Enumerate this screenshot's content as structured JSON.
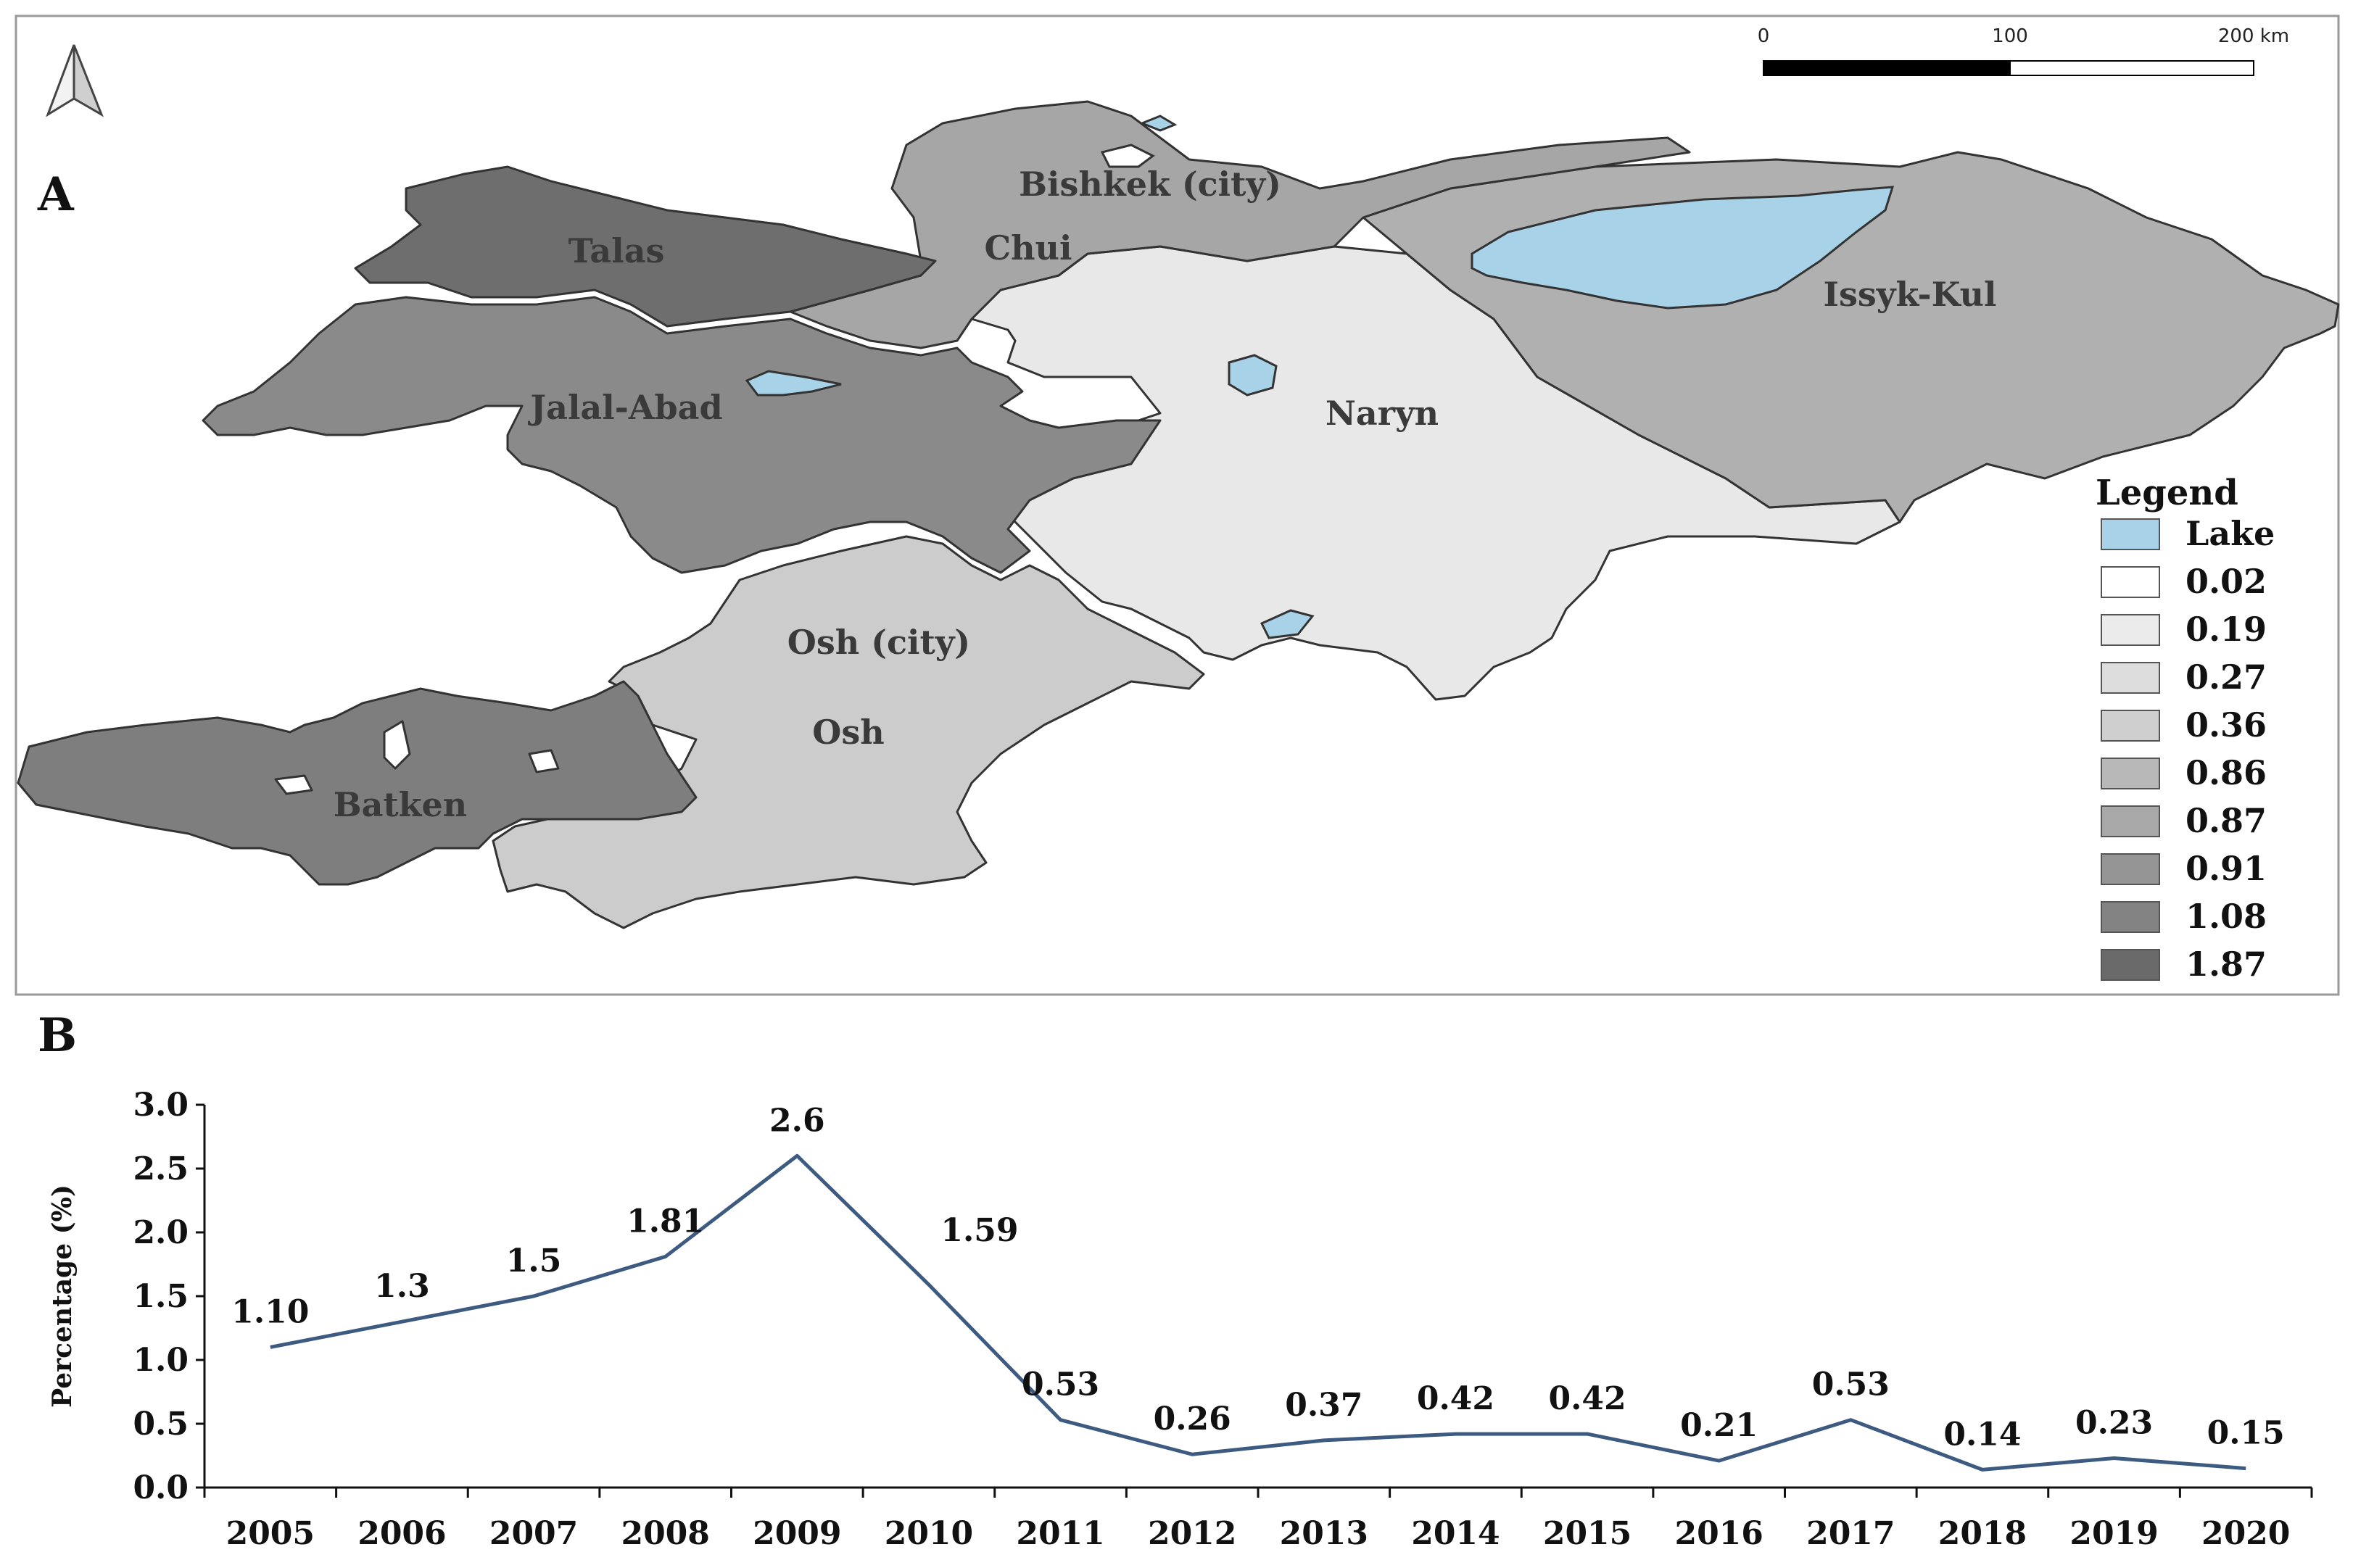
{
  "panel_a": {
    "label": "A",
    "north_arrow": "north-arrow-icon",
    "scale_bar": {
      "ticks": [
        "0",
        "100",
        "200 km"
      ]
    },
    "regions": [
      {
        "name": "Talas",
        "value": "1.87",
        "color": "#6e6e6e"
      },
      {
        "name": "Chui",
        "value": "0.87",
        "color": "#a6a6a6"
      },
      {
        "name": "Issyk-Kul",
        "value": "0.86",
        "color": "#b0b0b0"
      },
      {
        "name": "Jalal-Abad",
        "value": "1.08",
        "color": "#8a8a8a"
      },
      {
        "name": "Naryn",
        "value": "0.19",
        "color": "#e8e8e8"
      },
      {
        "name": "Osh",
        "value": "0.36",
        "color": "#cccccc"
      },
      {
        "name": "Batken",
        "value": "0.91",
        "color": "#7e7e7e"
      }
    ],
    "city_labels": [
      "Bishkek (city)",
      "Osh (city)"
    ],
    "legend": {
      "title": "Legend",
      "items": [
        {
          "label": "Lake",
          "color": "#a8d2e8"
        },
        {
          "label": "0.02",
          "color": "#ffffff"
        },
        {
          "label": "0.19",
          "color": "#ebebeb"
        },
        {
          "label": "0.27",
          "color": "#dddddd"
        },
        {
          "label": "0.36",
          "color": "#cfcfcf"
        },
        {
          "label": "0.86",
          "color": "#b8b8b8"
        },
        {
          "label": "0.87",
          "color": "#a8a8a8"
        },
        {
          "label": "0.91",
          "color": "#959595"
        },
        {
          "label": "1.08",
          "color": "#838383"
        },
        {
          "label": "1.87",
          "color": "#6a6a6a"
        }
      ]
    },
    "colors": {
      "lake": "#a8d2e8",
      "border": "#333333"
    }
  },
  "panel_b": {
    "label": "B"
  },
  "chart_data": {
    "type": "line",
    "x": [
      "2005",
      "2006",
      "2007",
      "2008",
      "2009",
      "2010",
      "2011",
      "2012",
      "2013",
      "2014",
      "2015",
      "2016",
      "2017",
      "2018",
      "2019",
      "2020"
    ],
    "values": [
      1.1,
      1.3,
      1.5,
      1.81,
      2.6,
      1.59,
      0.53,
      0.26,
      0.37,
      0.42,
      0.42,
      0.21,
      0.53,
      0.14,
      0.23,
      0.15
    ],
    "data_labels": [
      "1.10",
      "1.3",
      "1.5",
      "1.81",
      "2.6",
      "1.59",
      "0.53",
      "0.26",
      "0.37",
      "0.42",
      "0.42",
      "0.21",
      "0.53",
      "0.14",
      "0.23",
      "0.15"
    ],
    "ylabel": "Percentage (%)",
    "xlabel": "",
    "ylim": [
      0,
      3.0
    ],
    "yticks": [
      "0.0",
      "0.5",
      "1.0",
      "1.5",
      "2.0",
      "2.5",
      "3.0"
    ],
    "grid": false,
    "line_color": "#3d5a80"
  }
}
